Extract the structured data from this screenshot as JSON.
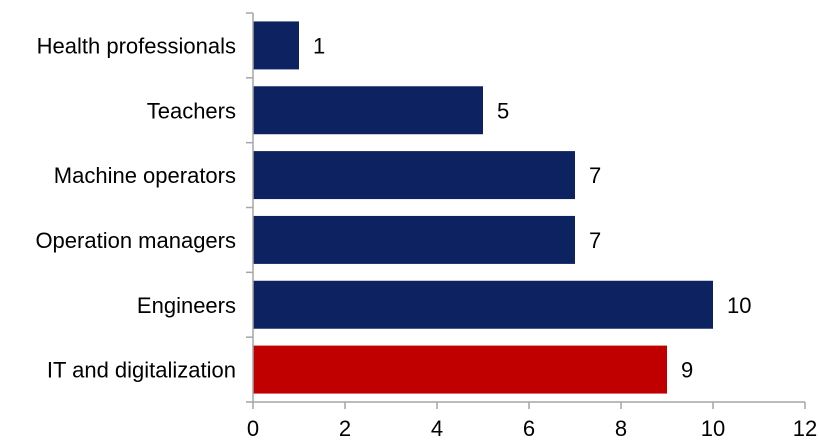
{
  "chart_data": {
    "type": "bar",
    "orientation": "horizontal",
    "categories": [
      "Health professionals",
      "Teachers",
      "Machine operators",
      "Operation managers",
      "Engineers",
      "IT and digitalization"
    ],
    "values": [
      1,
      5,
      7,
      7,
      10,
      9
    ],
    "data_labels": [
      "1",
      "5",
      "7",
      "7",
      "10",
      "9"
    ],
    "xlim": [
      0,
      12
    ],
    "xticks": [
      0,
      2,
      4,
      6,
      8,
      10,
      12
    ],
    "xtick_labels": [
      "0",
      "2",
      "4",
      "6",
      "8",
      "10",
      "12"
    ],
    "title": "",
    "xlabel": "",
    "ylabel": "",
    "grid": false,
    "legend": "none",
    "colors": {
      "default": "#0d2260",
      "highlight": "#c00000",
      "highlight_category": "IT and digitalization",
      "axis": "#a6a6a6"
    }
  }
}
